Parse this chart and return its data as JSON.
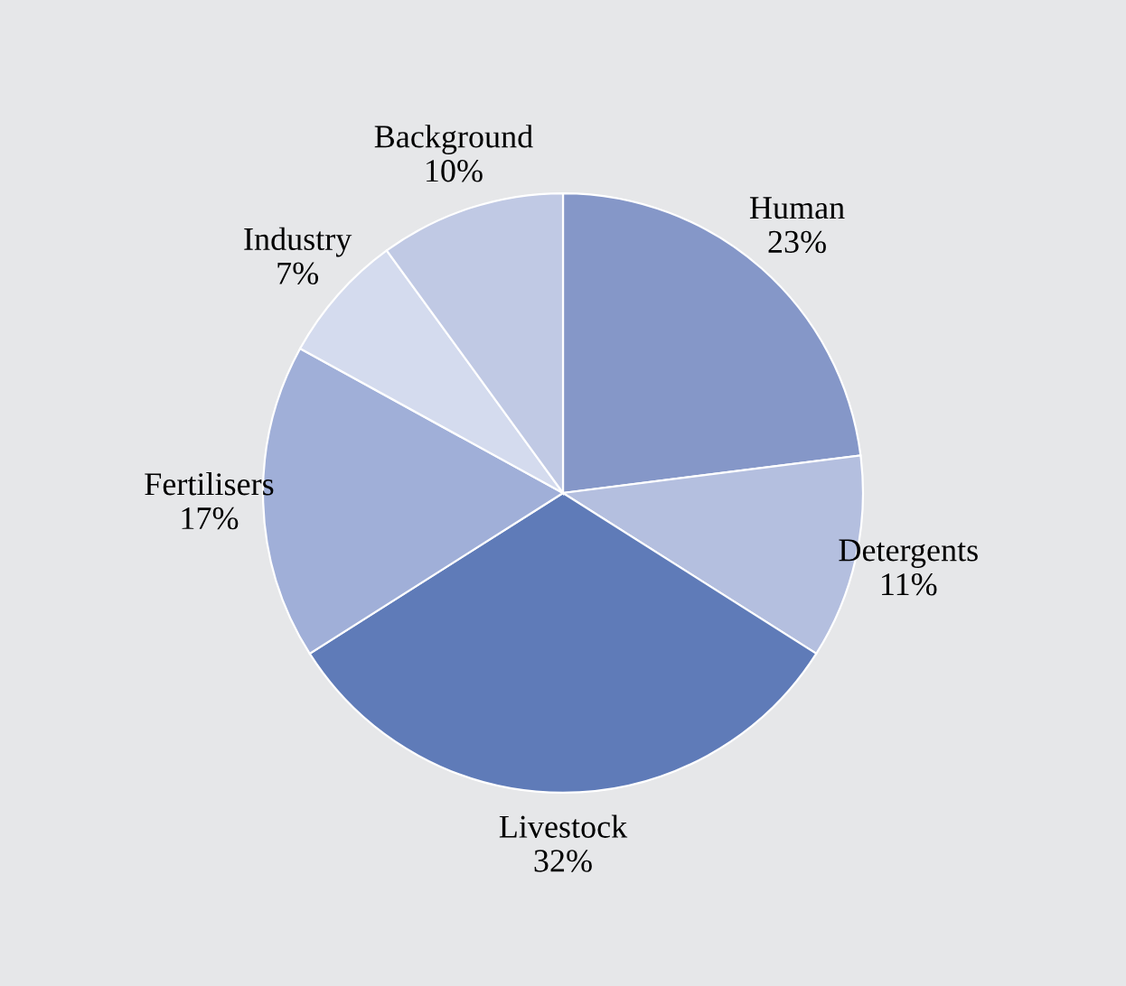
{
  "chart_data": {
    "type": "pie",
    "categories": [
      "Human",
      "Detergents",
      "Livestock",
      "Fertilisers",
      "Industry",
      "Background"
    ],
    "values": [
      23,
      11,
      32,
      17,
      7,
      10
    ],
    "value_labels": [
      "23%",
      "11%",
      "32%",
      "17%",
      "7%",
      "10%"
    ],
    "colors": [
      "#8597c8",
      "#b4bfdf",
      "#5f7bb8",
      "#a0afd8",
      "#d4dbee",
      "#c0c9e4"
    ],
    "legend": false
  }
}
